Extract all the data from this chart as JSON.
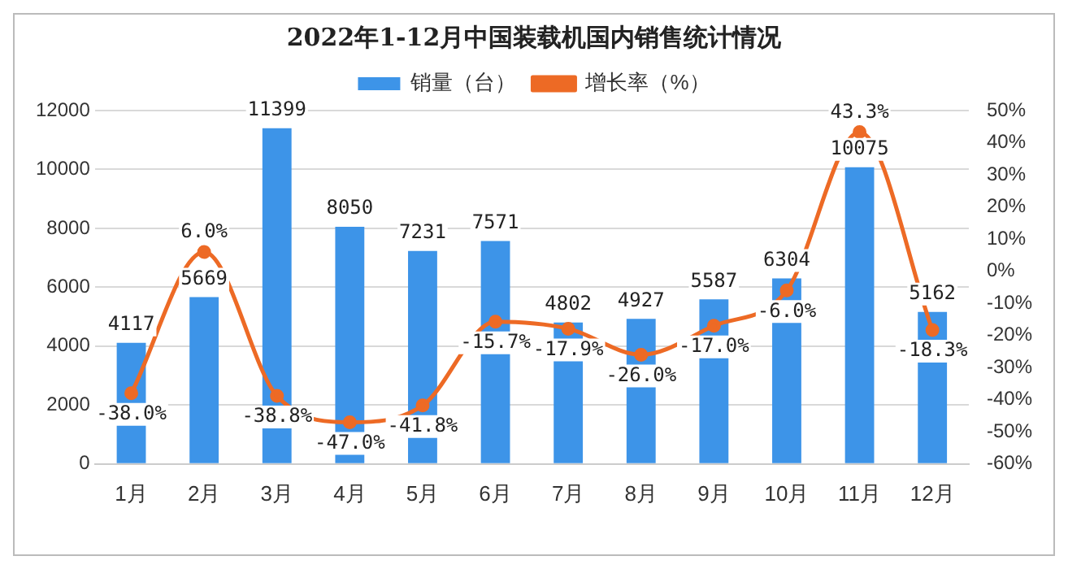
{
  "chart_data": {
    "type": "bar",
    "title": "2022年1-12月中国装载机国内销售统计情况",
    "categories": [
      "1月",
      "2月",
      "3月",
      "4月",
      "5月",
      "6月",
      "7月",
      "8月",
      "9月",
      "10月",
      "11月",
      "12月"
    ],
    "series": [
      {
        "name": "销量（台）",
        "color": "#3d94e8",
        "values": [
          4117,
          5669,
          11399,
          8050,
          7231,
          7571,
          4802,
          4927,
          5587,
          6304,
          10075,
          5162
        ],
        "value_labels": [
          "4117",
          "5669",
          "11399",
          "8050",
          "7231",
          "7571",
          "4802",
          "4927",
          "5587",
          "6304",
          "10075",
          "5162"
        ]
      },
      {
        "name": "增长率（%）",
        "type": "line",
        "axis": "y2",
        "color": "#ed6a25",
        "marker": "circle",
        "values": [
          -38.0,
          6.0,
          -38.8,
          -47.0,
          -41.8,
          -15.7,
          -17.9,
          -26.0,
          -17.0,
          -6.0,
          43.3,
          -18.3
        ],
        "value_labels": [
          "-38.0%",
          "6.0%",
          "-38.8%",
          "-47.0%",
          "-41.8%",
          "-15.7%",
          "-17.9%",
          "-26.0%",
          "-17.0%",
          "-6.0%",
          "43.3%",
          "-18.3%"
        ]
      }
    ],
    "ylim": [
      0,
      12000
    ],
    "yticks": [
      0,
      2000,
      4000,
      6000,
      8000,
      10000,
      12000
    ],
    "y2lim": [
      -60,
      50
    ],
    "y2ticks": [
      {
        "value": -60,
        "label": "-60%"
      },
      {
        "value": -50,
        "label": "-50%"
      },
      {
        "value": -40,
        "label": "-40%"
      },
      {
        "value": -30,
        "label": "-30%"
      },
      {
        "value": -20,
        "label": "-20%"
      },
      {
        "value": -10,
        "label": "-10%"
      },
      {
        "value": 0,
        "label": "0%"
      },
      {
        "value": 10,
        "label": "10%"
      },
      {
        "value": 20,
        "label": "20%"
      },
      {
        "value": 30,
        "label": "30%"
      },
      {
        "value": 40,
        "label": "40%"
      },
      {
        "value": 50,
        "label": "50%"
      }
    ],
    "grid": "y",
    "legend": "top"
  }
}
